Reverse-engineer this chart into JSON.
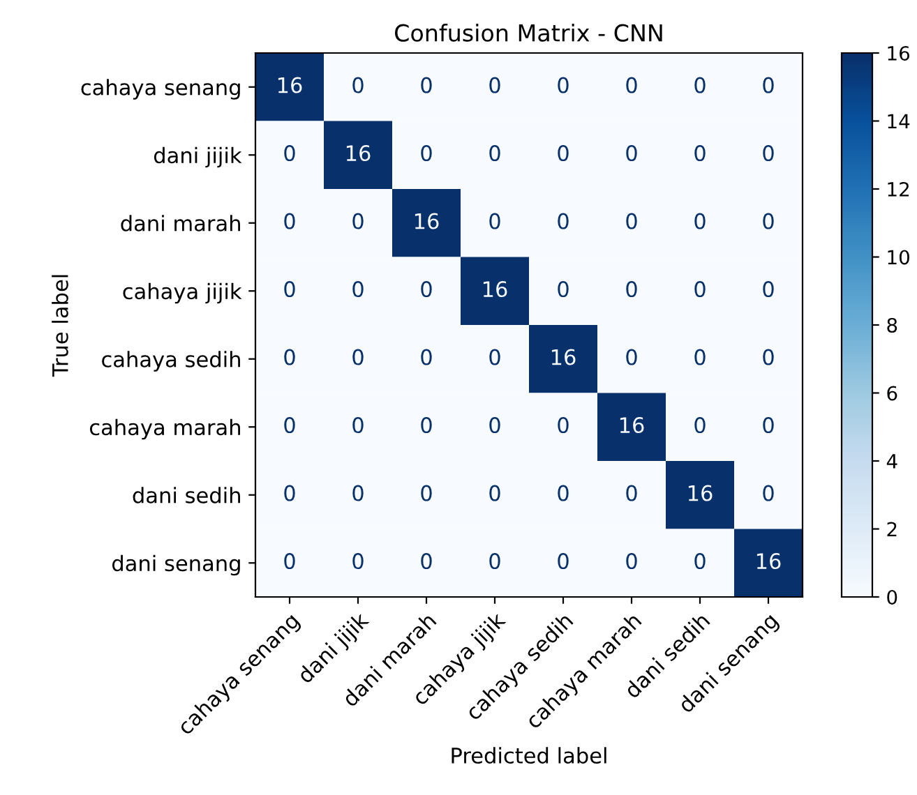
{
  "chart_data": {
    "type": "heatmap",
    "title": "Confusion Matrix - CNN",
    "xlabel": "Predicted label",
    "ylabel": "True label",
    "categories": [
      "cahaya senang",
      "dani jijik",
      "dani marah",
      "cahaya jijik",
      "cahaya sedih",
      "cahaya marah",
      "dani sedih",
      "dani senang"
    ],
    "y_categories": [
      "cahaya senang",
      "dani jijik",
      "dani marah",
      "cahaya jijik",
      "cahaya sedih",
      "cahaya marah",
      "dani sedih",
      "dani senang"
    ],
    "cells": [
      [
        16,
        0,
        0,
        0,
        0,
        0,
        0,
        0
      ],
      [
        0,
        16,
        0,
        0,
        0,
        0,
        0,
        0
      ],
      [
        0,
        0,
        16,
        0,
        0,
        0,
        0,
        0
      ],
      [
        0,
        0,
        0,
        16,
        0,
        0,
        0,
        0
      ],
      [
        0,
        0,
        0,
        0,
        16,
        0,
        0,
        0
      ],
      [
        0,
        0,
        0,
        0,
        0,
        16,
        0,
        0
      ],
      [
        0,
        0,
        0,
        0,
        0,
        0,
        16,
        0
      ],
      [
        0,
        0,
        0,
        0,
        0,
        0,
        0,
        16
      ]
    ],
    "clim": [
      0,
      16
    ],
    "cticks": [
      0,
      2,
      4,
      6,
      8,
      10,
      12,
      14,
      16
    ],
    "data_labels": true,
    "grid": false
  }
}
